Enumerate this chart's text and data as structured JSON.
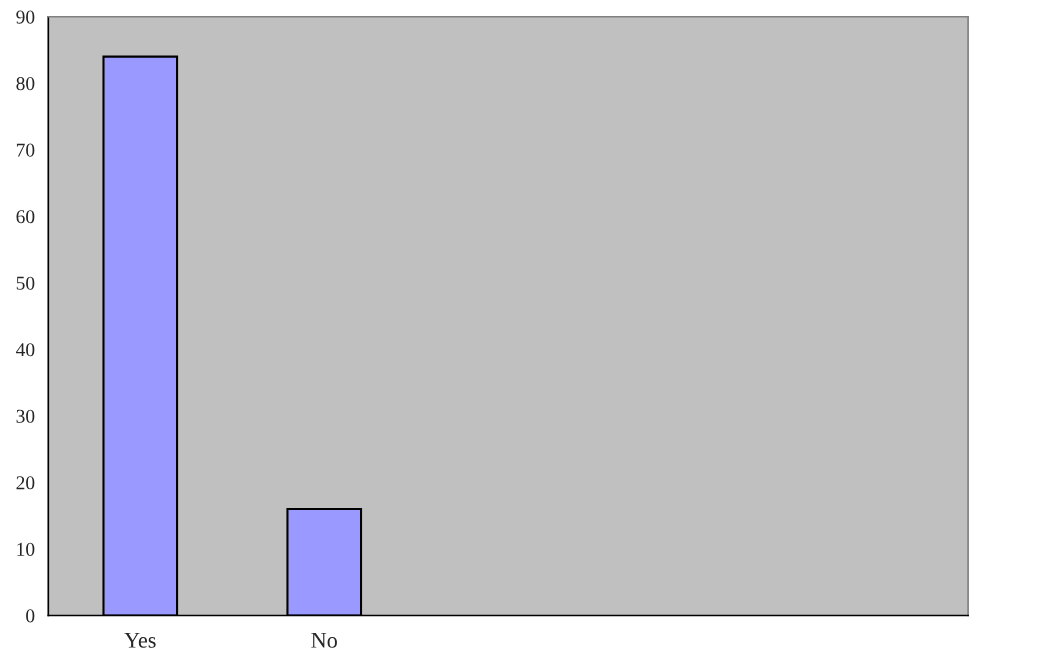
{
  "chart_data": {
    "type": "bar",
    "categories": [
      "Yes",
      "No",
      null,
      null,
      null
    ],
    "values": [
      84,
      16,
      null,
      null,
      null
    ],
    "color": "#9999ff",
    "ylim": [
      0,
      90
    ],
    "yticks": [
      0,
      10,
      20,
      30,
      40,
      50,
      60,
      70,
      80,
      90
    ],
    "grid": false,
    "legend": false
  }
}
